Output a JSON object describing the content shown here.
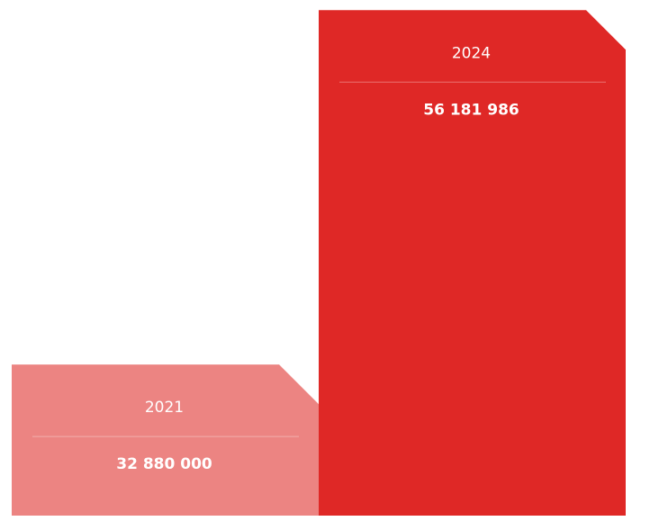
{
  "chart_data": {
    "type": "bar",
    "categories": [
      "2021",
      "2024"
    ],
    "values": [
      32880000,
      56181986
    ],
    "value_labels": [
      "32 880 000",
      "56 181 986"
    ],
    "colors": [
      "#ec8482",
      "#df2826"
    ],
    "ylim": [
      22950000,
      56200000
    ]
  }
}
